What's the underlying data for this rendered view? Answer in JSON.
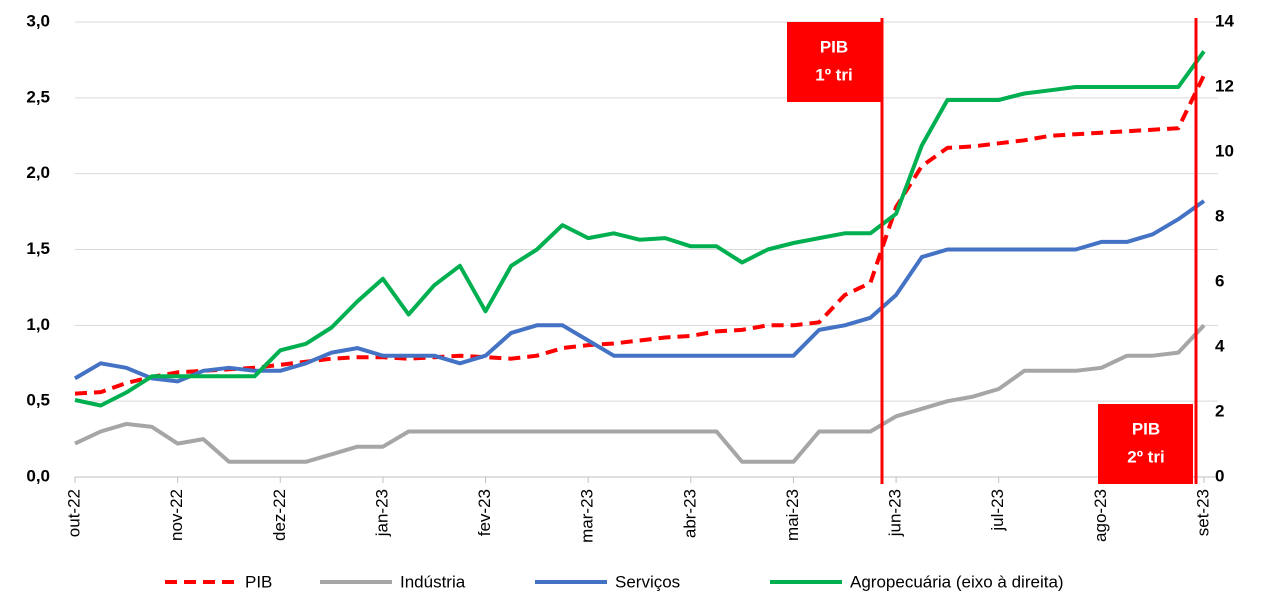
{
  "chart_data": {
    "type": "line",
    "categories": [
      "out-22",
      null,
      null,
      null,
      "nov-22",
      null,
      null,
      null,
      "dez-22",
      null,
      null,
      null,
      "jan-23",
      null,
      null,
      null,
      "fev-23",
      null,
      null,
      null,
      "mar-23",
      null,
      null,
      null,
      "abr-23",
      null,
      null,
      null,
      "mai-23",
      null,
      null,
      null,
      "jun-23",
      null,
      null,
      null,
      "jul-23",
      null,
      null,
      null,
      "ago-23",
      null,
      null,
      null,
      "set-23"
    ],
    "series": [
      {
        "name": "PIB",
        "color": "#ff0000",
        "dashed": true,
        "values": [
          0.55,
          0.56,
          0.62,
          0.66,
          0.69,
          0.7,
          0.71,
          0.72,
          0.74,
          0.76,
          0.78,
          0.79,
          0.79,
          0.78,
          0.79,
          0.8,
          0.79,
          0.78,
          0.8,
          0.85,
          0.87,
          0.88,
          0.9,
          0.92,
          0.93,
          0.96,
          0.97,
          1.0,
          1.0,
          1.02,
          1.2,
          1.28,
          1.78,
          2.05,
          2.17,
          2.18,
          2.2,
          2.22,
          2.25,
          2.26,
          2.27,
          2.28,
          2.29,
          2.3,
          2.65
        ]
      },
      {
        "name": "Indústria",
        "color": "#a6a6a6",
        "values": [
          0.22,
          0.3,
          0.35,
          0.33,
          0.22,
          0.25,
          0.1,
          0.1,
          0.1,
          0.1,
          0.15,
          0.2,
          0.2,
          0.3,
          0.3,
          0.3,
          0.3,
          0.3,
          0.3,
          0.3,
          0.3,
          0.3,
          0.3,
          0.3,
          0.3,
          0.3,
          0.1,
          0.1,
          0.1,
          0.3,
          0.3,
          0.3,
          0.4,
          0.45,
          0.5,
          0.53,
          0.58,
          0.7,
          0.7,
          0.7,
          0.72,
          0.8,
          0.8,
          0.82,
          1.0
        ]
      },
      {
        "name": "Serviços",
        "color": "#4472c4",
        "values": [
          0.65,
          0.75,
          0.72,
          0.65,
          0.63,
          0.7,
          0.72,
          0.7,
          0.7,
          0.75,
          0.82,
          0.85,
          0.8,
          0.8,
          0.8,
          0.75,
          0.8,
          0.95,
          1.0,
          1.0,
          0.9,
          0.8,
          0.8,
          0.8,
          0.8,
          0.8,
          0.8,
          0.8,
          0.8,
          0.97,
          1.0,
          1.05,
          1.2,
          1.45,
          1.5,
          1.5,
          1.5,
          1.5,
          1.5,
          1.5,
          1.55,
          1.55,
          1.6,
          1.7,
          1.82
        ]
      },
      {
        "name": "Agropecuária (eixo à direita)",
        "color": "#00b050",
        "axis": "y2",
        "values": [
          2.37,
          2.2,
          2.6,
          3.1,
          3.1,
          3.1,
          3.1,
          3.1,
          3.9,
          4.1,
          4.6,
          5.4,
          6.1,
          5.0,
          5.9,
          6.5,
          5.1,
          6.5,
          7.0,
          7.75,
          7.35,
          7.5,
          7.3,
          7.35,
          7.1,
          7.1,
          6.6,
          7.0,
          7.2,
          7.35,
          7.5,
          7.5,
          8.1,
          10.2,
          11.6,
          11.6,
          11.6,
          11.8,
          11.9,
          12.0,
          12.0,
          12.0,
          12.0,
          12.0,
          13.1
        ]
      }
    ],
    "ylim": [
      0,
      3
    ],
    "yticks": [
      {
        "value": 0,
        "label": "0,0"
      },
      {
        "value": 0.5,
        "label": "0,5"
      },
      {
        "value": 1,
        "label": "1,0"
      },
      {
        "value": 1.5,
        "label": "1,5"
      },
      {
        "value": 2,
        "label": "2,0"
      },
      {
        "value": 2.5,
        "label": "2,5"
      },
      {
        "value": 3,
        "label": "3,0"
      }
    ],
    "y2lim": [
      0,
      14
    ],
    "y2ticks": [
      0,
      2,
      4,
      6,
      8,
      10,
      12,
      14
    ],
    "grid": true,
    "legend": "bottom",
    "annotations": [
      {
        "lines": [
          "PIB",
          "1º tri"
        ]
      },
      {
        "lines": [
          "PIB",
          "2º tri"
        ]
      }
    ]
  }
}
